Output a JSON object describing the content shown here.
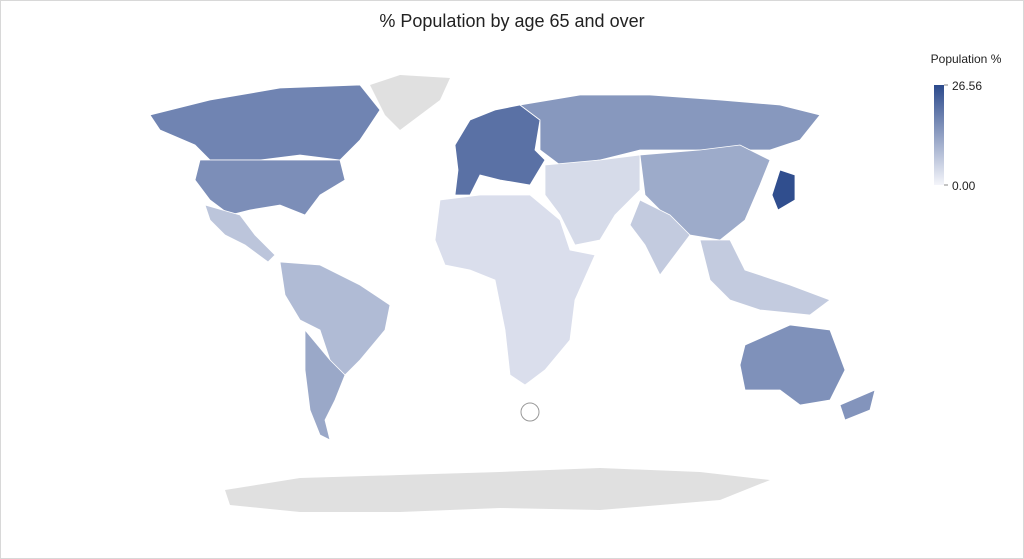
{
  "chart_data": {
    "type": "choropleth",
    "title": "% Population by age 65 and over",
    "legend_title": "Population %",
    "colorlim": [
      0,
      26.56
    ],
    "colorticks": [
      {
        "value": 0,
        "label": "0.00"
      },
      26.56
    ],
    "colors": [
      "#f4f5fa",
      "#2c4a8c"
    ],
    "no_data_color": "#e0e0e0",
    "values": [
      17.5,
      16,
      7.5,
      9,
      12,
      20.5,
      14.5,
      3.5,
      4,
      11.5,
      6.5,
      6.5,
      26,
      15.5,
      15
    ]
  }
}
